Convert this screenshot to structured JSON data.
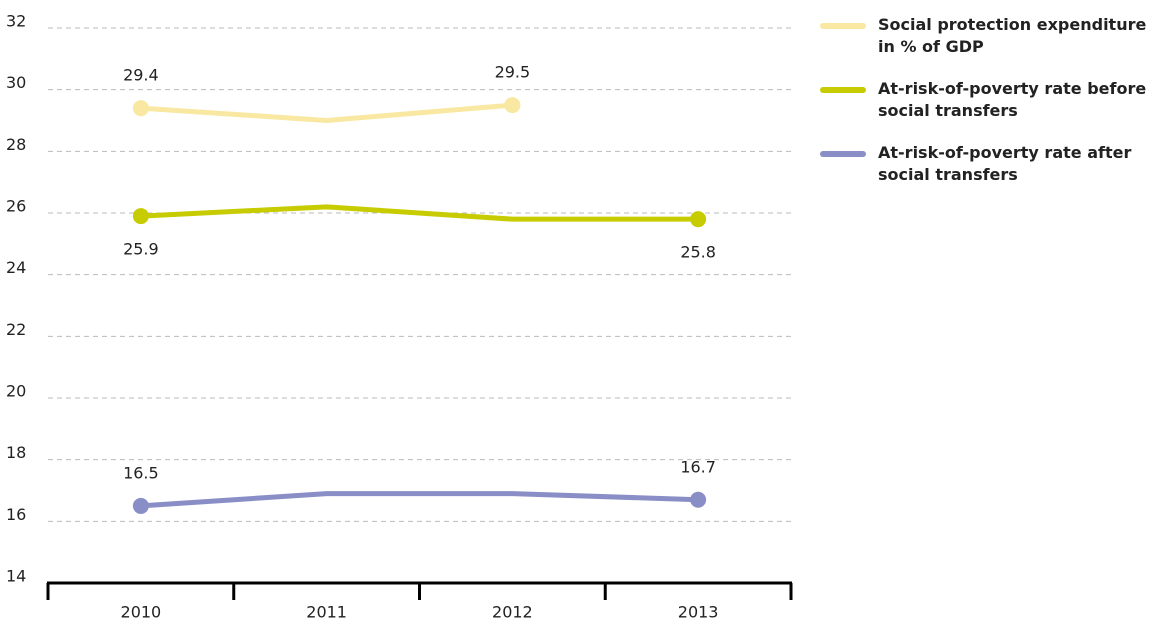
{
  "chart_data": {
    "type": "line",
    "categories": [
      "2010",
      "2011",
      "2012",
      "2013"
    ],
    "series": [
      {
        "name": "Social protection expenditure in % of GDP",
        "color": "#f8e8a2",
        "values": [
          29.4,
          29.0,
          29.5,
          null
        ],
        "markers": [
          0,
          2
        ],
        "label_position": "above"
      },
      {
        "name": "At-risk-of-poverty rate before social transfers",
        "color": "#c6cc00",
        "values": [
          25.9,
          26.2,
          25.8,
          25.8
        ],
        "markers": [
          0,
          3
        ],
        "label_position": "below"
      },
      {
        "name": "At-risk-of-poverty rate after social transfers",
        "color": "#8a8ec6",
        "values": [
          16.5,
          16.9,
          16.9,
          16.7
        ],
        "markers": [
          0,
          3
        ],
        "label_position": "above"
      }
    ],
    "ylim": [
      14,
      32
    ],
    "yticks": [
      14,
      16,
      18,
      20,
      22,
      24,
      26,
      28,
      30,
      32
    ],
    "grid": true,
    "legend": "right"
  }
}
